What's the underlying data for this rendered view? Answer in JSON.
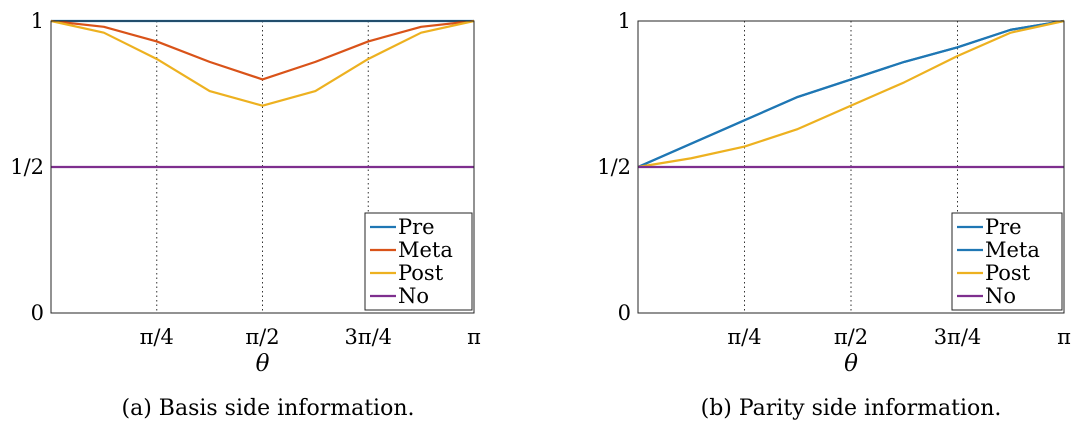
{
  "chart_data": [
    {
      "type": "line",
      "caption": "(a) Basis side information.",
      "xlabel": "θ",
      "ylabel": "",
      "xlim": [
        0,
        3.14159
      ],
      "ylim": [
        0,
        1
      ],
      "xticks": [
        0.7854,
        1.5708,
        2.3562,
        3.14159
      ],
      "xtick_labels": [
        "π/4",
        "π/2",
        "3π/4",
        "π"
      ],
      "yticks": [
        0,
        0.5,
        1
      ],
      "ytick_labels": [
        "0",
        "1/2",
        "1"
      ],
      "grid": "vertical dotted lines at x ticks",
      "legend_position": "bottom-right",
      "series": [
        {
          "name": "Pre",
          "color": "#1f77b4",
          "x": [
            0,
            0.3927,
            0.7854,
            1.1781,
            1.5708,
            1.9635,
            2.3562,
            2.7489,
            3.14159
          ],
          "y": [
            1,
            1,
            1,
            1,
            1,
            1,
            1,
            1,
            1
          ]
        },
        {
          "name": "Meta",
          "color": "#d95319",
          "x": [
            0,
            0.3927,
            0.7854,
            1.1781,
            1.5708,
            1.9635,
            2.3562,
            2.7489,
            3.14159
          ],
          "y": [
            1,
            0.98,
            0.93,
            0.86,
            0.8,
            0.86,
            0.93,
            0.98,
            1
          ]
        },
        {
          "name": "Post",
          "color": "#edb120",
          "x": [
            0,
            0.3927,
            0.7854,
            1.1781,
            1.5708,
            1.9635,
            2.3562,
            2.7489,
            3.14159
          ],
          "y": [
            1,
            0.96,
            0.87,
            0.76,
            0.71,
            0.76,
            0.87,
            0.96,
            1
          ]
        },
        {
          "name": "No",
          "color": "#7e2f8e",
          "x": [
            0,
            3.14159
          ],
          "y": [
            0.5,
            0.5
          ]
        }
      ]
    },
    {
      "type": "line",
      "caption": "(b) Parity side information.",
      "xlabel": "θ",
      "ylabel": "",
      "xlim": [
        0,
        3.14159
      ],
      "ylim": [
        0,
        1
      ],
      "xticks": [
        0.7854,
        1.5708,
        2.3562,
        3.14159
      ],
      "xtick_labels": [
        "π/4",
        "π/2",
        "3π/4",
        "π"
      ],
      "yticks": [
        0,
        0.5,
        1
      ],
      "ytick_labels": [
        "0",
        "1/2",
        "1"
      ],
      "grid": "vertical dotted lines at x ticks; horizontal dotted line at 1",
      "legend_position": "bottom-right",
      "series": [
        {
          "name": "Pre",
          "color": "#1f77b4",
          "x": [
            0,
            0.3927,
            0.7854,
            1.1781,
            1.5708,
            1.9635,
            2.3562,
            2.7489,
            3.14159
          ],
          "y": [
            0.5,
            0.58,
            0.66,
            0.74,
            0.8,
            0.86,
            0.91,
            0.97,
            1
          ]
        },
        {
          "name": "Meta",
          "color": "#1f77b4",
          "x": [
            0,
            0.3927,
            0.7854,
            1.1781,
            1.5708,
            1.9635,
            2.3562,
            2.7489,
            3.14159
          ],
          "y": [
            0.5,
            0.58,
            0.66,
            0.74,
            0.8,
            0.86,
            0.91,
            0.97,
            1
          ]
        },
        {
          "name": "Post",
          "color": "#edb120",
          "x": [
            0,
            0.3927,
            0.7854,
            1.1781,
            1.5708,
            1.9635,
            2.3562,
            2.7489,
            3.14159
          ],
          "y": [
            0.5,
            0.53,
            0.57,
            0.63,
            0.71,
            0.79,
            0.88,
            0.96,
            1
          ]
        },
        {
          "name": "No",
          "color": "#7e2f8e",
          "x": [
            0,
            3.14159
          ],
          "y": [
            0.5,
            0.5
          ]
        }
      ]
    }
  ]
}
